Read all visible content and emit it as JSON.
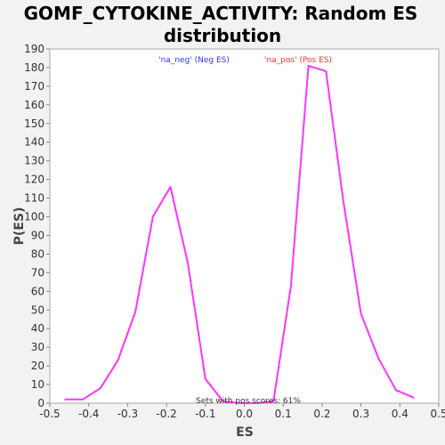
{
  "chart_data": {
    "type": "line",
    "title": "GOMF_CYTOKINE_ACTIVITY: Random ES distribution",
    "title_lines": [
      "GOMF_CYTOKINE_ACTIVITY: Random ES",
      "distribution"
    ],
    "xlabel": "ES",
    "ylabel": "P(ES)",
    "xlim": [
      -0.5,
      0.5
    ],
    "ylim": [
      0,
      190
    ],
    "xticks": [
      -0.5,
      -0.4,
      -0.3,
      -0.2,
      -0.1,
      0.0,
      0.1,
      0.2,
      0.3,
      0.4,
      0.5
    ],
    "xtick_labels": [
      "-0.5",
      "-0.4",
      "-0.3",
      "-0.2",
      "-0.1",
      "0.0",
      "0.1",
      "0.2",
      "0.3",
      "0.4",
      "0.5"
    ],
    "yticks": [
      0,
      10,
      20,
      30,
      40,
      50,
      60,
      70,
      80,
      90,
      100,
      110,
      120,
      130,
      140,
      150,
      160,
      170,
      180,
      190
    ],
    "grid": false,
    "legend": [
      {
        "label": "'na_neg' (Neg ES)",
        "color": "#3333ff"
      },
      {
        "label": "'na_pos' (Pos ES)",
        "color": "#ff3333"
      }
    ],
    "annotation": "Sets with pos scores: 61%",
    "line_color": "#ff33ff",
    "series": [
      {
        "x": [
          -0.46,
          -0.415,
          -0.37,
          -0.325,
          -0.28,
          -0.235,
          -0.19,
          -0.145,
          -0.1,
          -0.055,
          -0.01,
          0.035,
          0.075,
          0.12,
          0.165,
          0.21,
          0.255,
          0.3,
          0.345,
          0.39,
          0.435
        ],
        "values": [
          2,
          2,
          8,
          23,
          49,
          100,
          116,
          75,
          13,
          1,
          0,
          0,
          1,
          63,
          181,
          178,
          108,
          48,
          24,
          7,
          3
        ]
      }
    ]
  }
}
